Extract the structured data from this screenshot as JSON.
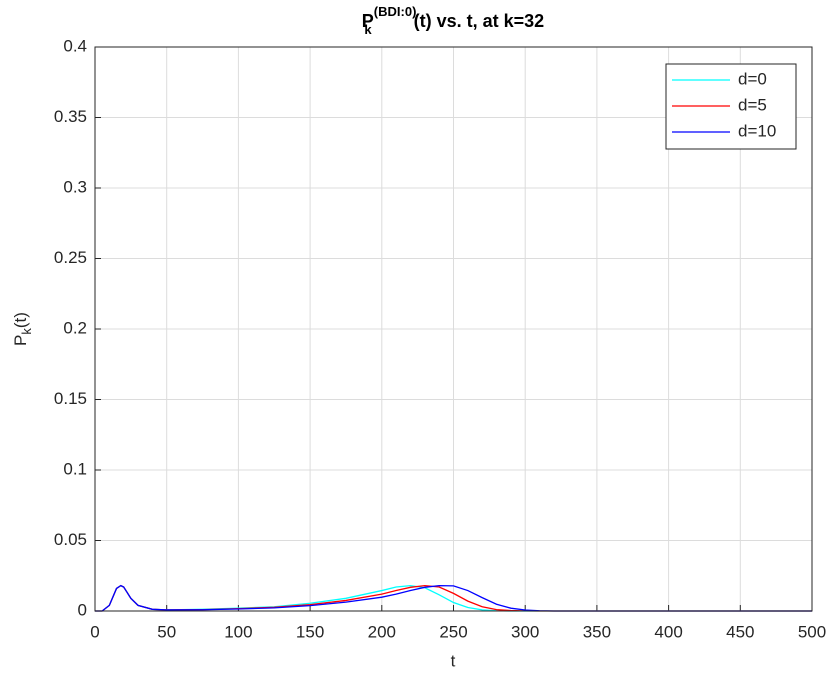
{
  "chart_data": {
    "type": "line",
    "title": {
      "base": "P",
      "sub": "k",
      "sup": "(BDI:0)",
      "rest": "(t) vs. t, at k=32"
    },
    "xlabel": "t",
    "ylabel": {
      "base": "P",
      "sub": "k",
      "rest": "(t)"
    },
    "x": [
      0,
      5,
      10,
      15,
      18,
      20,
      25,
      30,
      40,
      50,
      75,
      100,
      125,
      150,
      175,
      200,
      210,
      220,
      230,
      240,
      250,
      260,
      270,
      280,
      290,
      300,
      310,
      320,
      350,
      400,
      450,
      500
    ],
    "series": [
      {
        "name": "d=0",
        "color": "#00ffff",
        "values": [
          0,
          0,
          0.004,
          0.016,
          0.018,
          0.017,
          0.009,
          0.004,
          0.0012,
          0.0008,
          0.0012,
          0.002,
          0.003,
          0.0055,
          0.009,
          0.0145,
          0.017,
          0.018,
          0.0165,
          0.0115,
          0.006,
          0.0025,
          0.0008,
          0.0002,
          0,
          0,
          0,
          0,
          0,
          0,
          0,
          0
        ]
      },
      {
        "name": "d=5",
        "color": "#ff0000",
        "values": [
          0,
          0,
          0.004,
          0.016,
          0.018,
          0.017,
          0.009,
          0.004,
          0.0012,
          0.0008,
          0.001,
          0.0017,
          0.0026,
          0.0045,
          0.0075,
          0.012,
          0.0145,
          0.0168,
          0.018,
          0.017,
          0.0125,
          0.007,
          0.003,
          0.001,
          0.0003,
          0.0001,
          0,
          0,
          0,
          0,
          0,
          0
        ]
      },
      {
        "name": "d=10",
        "color": "#0000ff",
        "values": [
          0,
          0,
          0.004,
          0.016,
          0.018,
          0.017,
          0.009,
          0.004,
          0.0012,
          0.0008,
          0.0009,
          0.0014,
          0.0022,
          0.0038,
          0.0063,
          0.0098,
          0.012,
          0.0145,
          0.0168,
          0.018,
          0.0178,
          0.0145,
          0.0095,
          0.0048,
          0.002,
          0.0007,
          0.0002,
          0,
          0,
          0,
          0,
          0
        ]
      }
    ],
    "xlim": [
      0,
      500
    ],
    "xticks": [
      0,
      50,
      100,
      150,
      200,
      250,
      300,
      350,
      400,
      450,
      500
    ],
    "ylim": [
      0,
      0.4
    ],
    "yticks": [
      0,
      0.05,
      0.1,
      0.15,
      0.2,
      0.25,
      0.3,
      0.35,
      0.4
    ],
    "grid": true,
    "legend": "top-right"
  }
}
